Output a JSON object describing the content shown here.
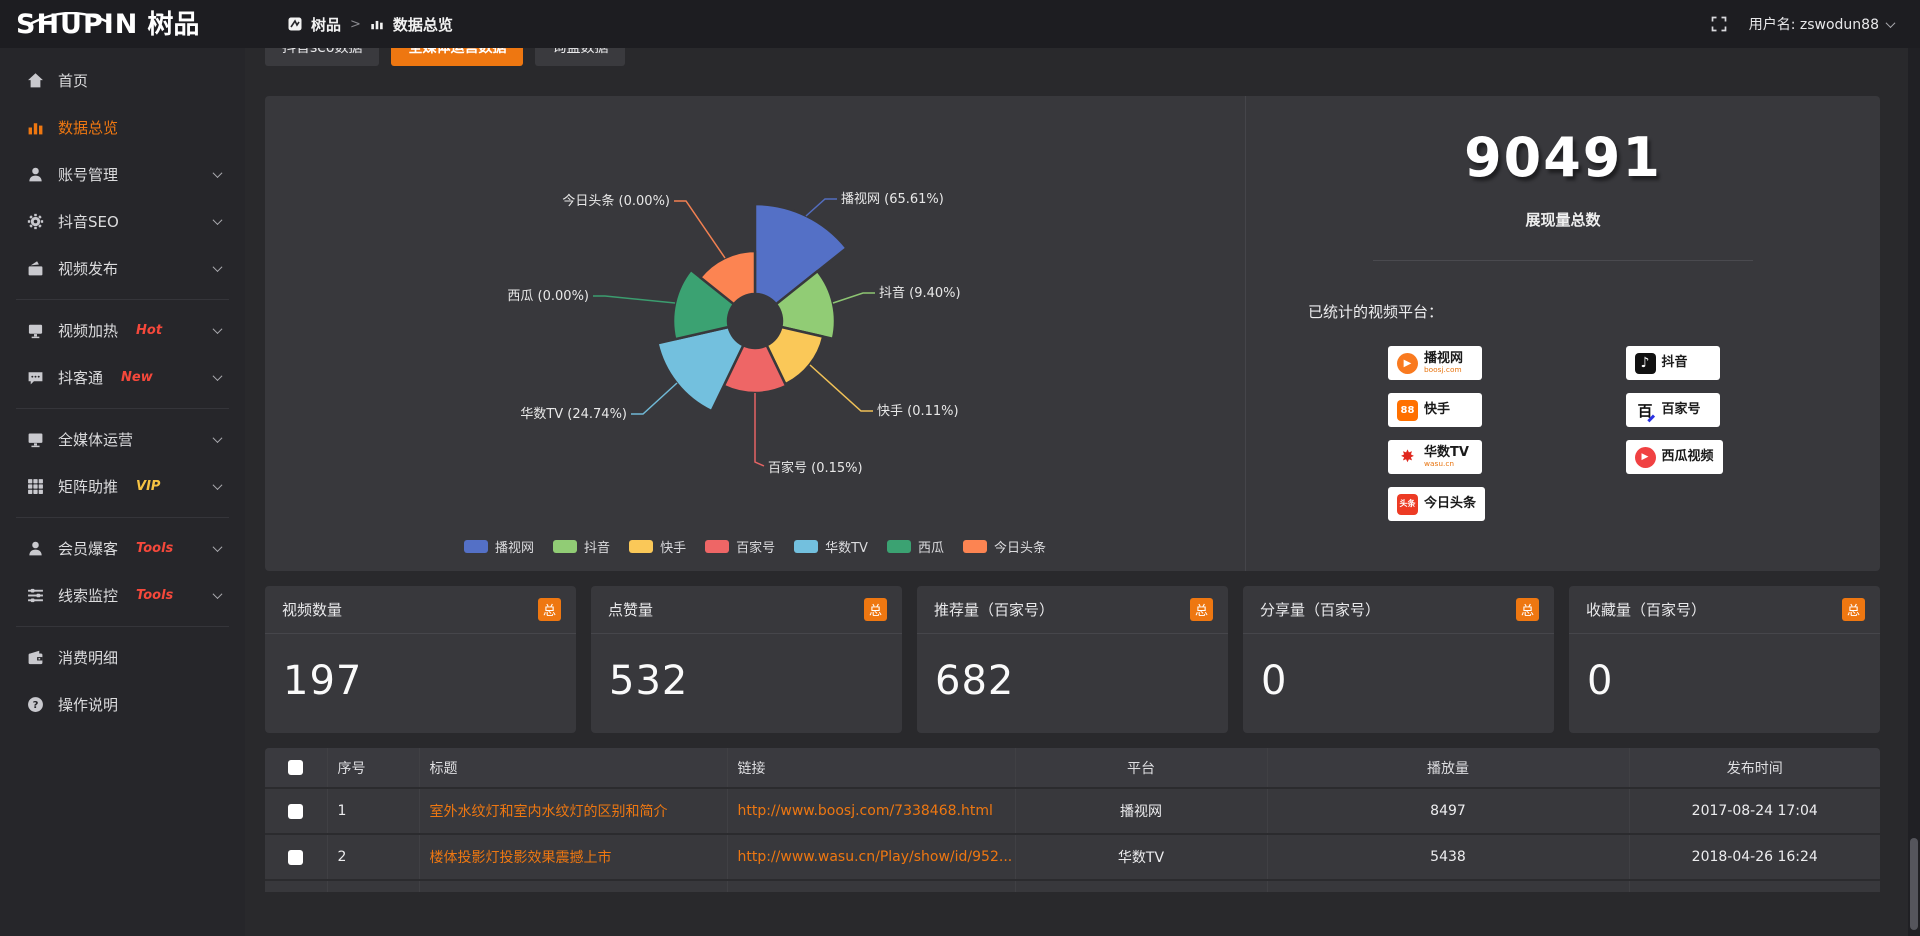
{
  "app": {
    "accent": "#EE7711",
    "hot_color": "#F5483B",
    "vip_color": "#F6C343",
    "panel_bg": "#38383C"
  },
  "header": {
    "logo_en": "SHUPIN",
    "logo_cn": "树品",
    "breadcrumb": {
      "root": "树品",
      "sep": ">",
      "current": "数据总览"
    },
    "user_label": "用户名: zswodun88"
  },
  "sidebar": {
    "items": [
      {
        "label": "首页",
        "icon": "home-icon"
      },
      {
        "label": "数据总览",
        "icon": "chart-icon",
        "active": true
      },
      {
        "label": "账号管理",
        "icon": "user-icon",
        "chevron": true
      },
      {
        "label": "抖音SEO",
        "icon": "gear-icon",
        "chevron": true
      },
      {
        "label": "视频发布",
        "icon": "publish-icon",
        "chevron": true,
        "divider_after": true
      },
      {
        "label": "视频加热",
        "icon": "heat-icon",
        "badge": "Hot",
        "badge_color": "hot",
        "chevron": true
      },
      {
        "label": "抖客通",
        "icon": "chat-icon",
        "badge": "New",
        "badge_color": "hot",
        "chevron": true,
        "divider_after": true
      },
      {
        "label": "全媒体运营",
        "icon": "media-icon",
        "chevron": true
      },
      {
        "label": "矩阵助推",
        "icon": "matrix-icon",
        "badge": "VIP",
        "badge_color": "vip",
        "chevron": true,
        "divider_after": true
      },
      {
        "label": "会员爆客",
        "icon": "member-icon",
        "badge": "Tools",
        "badge_color": "hot",
        "chevron": true
      },
      {
        "label": "线索监控",
        "icon": "sliders-icon",
        "badge": "Tools",
        "badge_color": "hot",
        "chevron": true,
        "divider_after": true
      },
      {
        "label": "消费明细",
        "icon": "expense-icon"
      },
      {
        "label": "操作说明",
        "icon": "help-icon"
      }
    ]
  },
  "tabs": [
    {
      "label": "抖音seo数据"
    },
    {
      "label": "全媒体运营数据",
      "active": true
    },
    {
      "label": "询盘数据"
    }
  ],
  "chart_data": {
    "type": "pie",
    "subtype": "nightingale-rose-donut",
    "unit": "percent",
    "equal_angles": true,
    "inner_radius_px": 27,
    "legend_position": "bottom",
    "label_format": "{name} ({value}%)",
    "slices": [
      {
        "name": "播视网",
        "value": 65.61,
        "color": "#5470C6",
        "radius_px": 117
      },
      {
        "name": "抖音",
        "value": 9.4,
        "color": "#91CC75",
        "radius_px": 80
      },
      {
        "name": "快手",
        "value": 0.11,
        "color": "#FAC858",
        "radius_px": 70
      },
      {
        "name": "百家号",
        "value": 0.15,
        "color": "#EE6666",
        "radius_px": 72
      },
      {
        "name": "华数TV",
        "value": 24.74,
        "color": "#73C0DE",
        "radius_px": 100
      },
      {
        "name": "西瓜",
        "value": 0.0,
        "color": "#3BA272",
        "radius_px": 82
      },
      {
        "name": "今日头条",
        "value": 0.0,
        "color": "#FC8452",
        "radius_px": 70
      }
    ]
  },
  "summary": {
    "total_value": "90491",
    "total_label": "展现量总数",
    "platforms_label": "已统计的视频平台：",
    "platforms": [
      {
        "name": "播视网",
        "sub": "boosj.com",
        "icon": "boosj-logo"
      },
      {
        "name": "抖音",
        "sub": "",
        "icon": "douyin-logo"
      },
      {
        "name": "快手",
        "sub": "",
        "icon": "kuaishou-logo"
      },
      {
        "name": "百家号",
        "sub": "",
        "icon": "baijiahao-logo"
      },
      {
        "name": "华数TV",
        "sub": "wasu.cn",
        "icon": "wasu-logo"
      },
      {
        "name": "西瓜视频",
        "sub": "",
        "icon": "xigua-logo"
      },
      {
        "name": "今日头条",
        "sub": "",
        "icon": "toutiao-logo"
      }
    ]
  },
  "stat_cards": [
    {
      "title": "视频数量",
      "badge": "总",
      "value": "197"
    },
    {
      "title": "点赞量",
      "badge": "总",
      "value": "532"
    },
    {
      "title": "推荐量（百家号）",
      "badge": "总",
      "value": "682"
    },
    {
      "title": "分享量（百家号）",
      "badge": "总",
      "value": "0"
    },
    {
      "title": "收藏量（百家号）",
      "badge": "总",
      "value": "0"
    }
  ],
  "table": {
    "columns": [
      "",
      "序号",
      "标题",
      "链接",
      "平台",
      "播放量",
      "发布时间"
    ],
    "rows": [
      {
        "index": "1",
        "title": "室外水纹灯和室内水纹灯的区别和简介",
        "link": "http://www.boosj.com/7338468.html",
        "platform": "播视网",
        "plays": "8497",
        "published": "2017-08-24 17:04"
      },
      {
        "index": "2",
        "title": "楼体投影灯投影效果震撼上市",
        "link": "http://www.wasu.cn/Play/show/id/952...",
        "platform": "华数TV",
        "plays": "5438",
        "published": "2018-04-26 16:24"
      }
    ]
  }
}
